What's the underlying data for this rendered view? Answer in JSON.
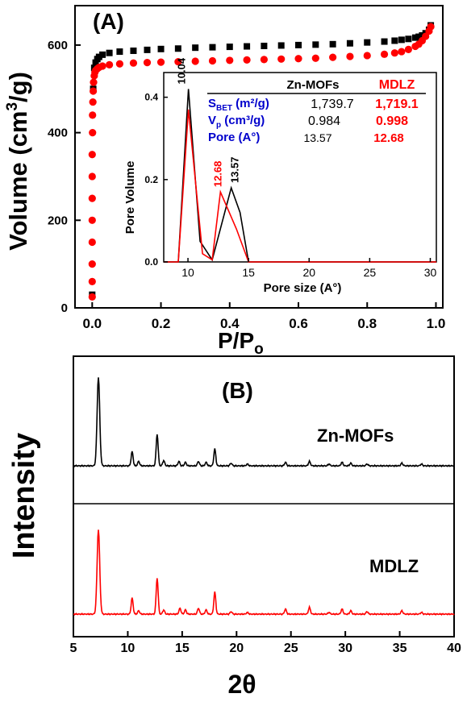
{
  "colors": {
    "black_series": "#000000",
    "red_series": "#ff0000",
    "table_label": "#0000cc",
    "axis": "#000000"
  },
  "chart_data": [
    {
      "type": "scatter",
      "panel_label": "(A)",
      "xlabel": "P/P",
      "xlabel_sub": "o",
      "ylabel": "Volume (cm",
      "ylabel_sup": "3",
      "ylabel_tail": "/g)",
      "xlim": [
        -0.05,
        1.02
      ],
      "ylim": [
        0,
        690
      ],
      "x_ticks": [
        "0.0",
        "0.2",
        "0.4",
        "0.6",
        "0.8",
        "1.0"
      ],
      "x_tick_values": [
        0.0,
        0.2,
        0.4,
        0.6,
        0.8,
        1.0
      ],
      "y_ticks": [
        "0",
        "200",
        "400",
        "600"
      ],
      "y_tick_values": [
        0,
        200,
        400,
        600
      ],
      "series": [
        {
          "color": "#000000",
          "marker": "square",
          "x": [
            0.0,
            0.003,
            0.006,
            0.01,
            0.015,
            0.02,
            0.03,
            0.05,
            0.08,
            0.12,
            0.16,
            0.2,
            0.25,
            0.3,
            0.35,
            0.4,
            0.45,
            0.5,
            0.55,
            0.6,
            0.65,
            0.7,
            0.75,
            0.8,
            0.85,
            0.88,
            0.9,
            0.92,
            0.94,
            0.95,
            0.96,
            0.97,
            0.98,
            0.985
          ],
          "y": [
            30,
            500,
            548,
            560,
            568,
            573,
            578,
            582,
            585,
            587,
            589,
            591,
            592,
            594,
            595,
            596,
            597,
            598,
            599,
            600,
            601,
            602,
            604,
            606,
            608,
            610,
            612,
            614,
            617,
            619,
            622,
            627,
            635,
            645
          ]
        },
        {
          "color": "#ff0000",
          "marker": "circle",
          "x": [
            0.0,
            0.0,
            0.0,
            0.0,
            0.0,
            0.0,
            0.0,
            0.0,
            0.001,
            0.001,
            0.002,
            0.003,
            0.004,
            0.006,
            0.008,
            0.01,
            0.015,
            0.02,
            0.03,
            0.05,
            0.08,
            0.12,
            0.16,
            0.2,
            0.25,
            0.3,
            0.35,
            0.4,
            0.45,
            0.5,
            0.55,
            0.6,
            0.65,
            0.7,
            0.75,
            0.8,
            0.85,
            0.88,
            0.9,
            0.92,
            0.94,
            0.95,
            0.96,
            0.97,
            0.98,
            0.985
          ],
          "y": [
            25,
            60,
            100,
            150,
            200,
            250,
            300,
            350,
            400,
            440,
            470,
            495,
            515,
            530,
            538,
            542,
            546,
            549,
            552,
            555,
            557,
            559,
            560,
            561,
            562,
            563,
            564,
            565,
            566,
            567,
            568,
            569,
            570,
            572,
            574,
            576,
            579,
            582,
            585,
            590,
            597,
            602,
            610,
            620,
            632,
            642
          ]
        }
      ]
    },
    {
      "type": "line",
      "inset": true,
      "xlabel": "Pore size (A°)",
      "ylabel": "Pore Volume",
      "xlim": [
        8,
        30.5
      ],
      "ylim": [
        0,
        0.46
      ],
      "x_ticks": [
        "10",
        "15",
        "20",
        "25",
        "30"
      ],
      "x_tick_values": [
        10,
        15,
        20,
        25,
        30
      ],
      "y_ticks": [
        "0.0",
        "0.2",
        "0.4"
      ],
      "y_tick_values": [
        0.0,
        0.2,
        0.4
      ],
      "series": [
        {
          "name": "Zn-MOFs",
          "color": "#000000",
          "x": [
            8,
            9.2,
            10.04,
            11.0,
            12.0,
            13.57,
            14.3,
            15.0,
            30.5
          ],
          "y": [
            0,
            0,
            0.42,
            0.05,
            0.005,
            0.18,
            0.12,
            0,
            0
          ]
        },
        {
          "name": "MDLZ",
          "color": "#ff0000",
          "x": [
            8,
            9.2,
            10.04,
            11.2,
            12.0,
            12.68,
            14.0,
            15.0,
            30.5
          ],
          "y": [
            0,
            0,
            0.37,
            0.02,
            0.005,
            0.17,
            0.08,
            0,
            0
          ]
        }
      ],
      "peak_labels": [
        {
          "text": "10.04",
          "x": 10.04,
          "y": 0.42,
          "color": "#000000"
        },
        {
          "text": "12.68",
          "x": 12.68,
          "y": 0.17,
          "color": "#ff0000"
        },
        {
          "text": "13.57",
          "x": 13.57,
          "y": 0.18,
          "color": "#000000"
        }
      ],
      "table": {
        "columns": [
          "Zn-MOFs",
          "MDLZ"
        ],
        "rows": [
          {
            "label": "S",
            "label_sub": "BET",
            "label_tail": " (m²/g)",
            "zn": "1,739.7",
            "mdlz": "1,719.1"
          },
          {
            "label": "V",
            "label_sub": "p",
            "label_tail": " (cm³/g)",
            "zn": "0.984",
            "mdlz": "0.998"
          },
          {
            "label": "Pore (A°)",
            "label_sub": "",
            "label_tail": "",
            "zn": "13.57",
            "mdlz": "12.68"
          }
        ]
      }
    },
    {
      "type": "line",
      "panel_label": "(B)",
      "xlabel": "2θ",
      "ylabel": "Intensity",
      "xlim": [
        5,
        40
      ],
      "x_ticks": [
        "5",
        "10",
        "15",
        "20",
        "25",
        "30",
        "35",
        "40"
      ],
      "x_tick_values": [
        5,
        10,
        15,
        20,
        25,
        30,
        35,
        40
      ],
      "peaks_2theta_relative_intensity": {
        "Zn-MOFs": [
          [
            7.3,
            1.0
          ],
          [
            10.4,
            0.16
          ],
          [
            11.0,
            0.05
          ],
          [
            12.7,
            0.36
          ],
          [
            13.3,
            0.06
          ],
          [
            14.7,
            0.05
          ],
          [
            15.3,
            0.04
          ],
          [
            16.5,
            0.05
          ],
          [
            17.2,
            0.04
          ],
          [
            18.0,
            0.19
          ],
          [
            19.5,
            0.03
          ],
          [
            21.0,
            0.02
          ],
          [
            24.5,
            0.04
          ],
          [
            26.7,
            0.05
          ],
          [
            28.5,
            0.02
          ],
          [
            29.7,
            0.04
          ],
          [
            30.5,
            0.03
          ],
          [
            32.0,
            0.02
          ],
          [
            35.2,
            0.03
          ],
          [
            37.0,
            0.02
          ]
        ],
        "MDLZ": [
          [
            7.3,
            1.0
          ],
          [
            10.4,
            0.19
          ],
          [
            11.0,
            0.04
          ],
          [
            12.7,
            0.43
          ],
          [
            13.3,
            0.05
          ],
          [
            14.8,
            0.07
          ],
          [
            15.3,
            0.05
          ],
          [
            16.5,
            0.07
          ],
          [
            17.2,
            0.05
          ],
          [
            18.0,
            0.26
          ],
          [
            19.5,
            0.03
          ],
          [
            21.0,
            0.02
          ],
          [
            24.5,
            0.06
          ],
          [
            26.7,
            0.08
          ],
          [
            28.5,
            0.02
          ],
          [
            29.7,
            0.06
          ],
          [
            30.5,
            0.04
          ],
          [
            32.0,
            0.03
          ],
          [
            35.2,
            0.04
          ],
          [
            37.0,
            0.02
          ]
        ]
      },
      "series": [
        {
          "name": "Zn-MOFs",
          "color": "#000000"
        },
        {
          "name": "MDLZ",
          "color": "#ff0000"
        }
      ]
    }
  ]
}
